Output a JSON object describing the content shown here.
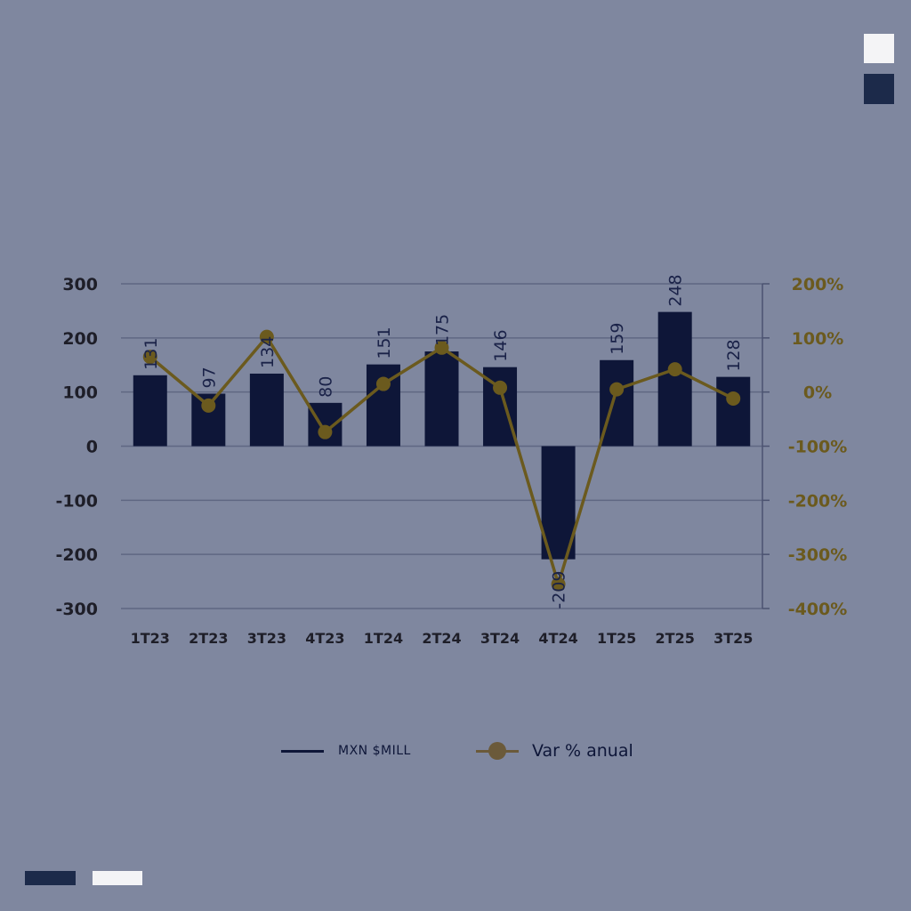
{
  "chart_data": {
    "type": "bar",
    "categories": [
      "1T23",
      "2T23",
      "3T23",
      "4T23",
      "1T24",
      "2T24",
      "3T24",
      "4T24",
      "1T25",
      "2T25",
      "3T25"
    ],
    "series": [
      {
        "name": "MXN $MILL",
        "type": "bar",
        "axis": "left",
        "values": [
          131,
          97,
          134,
          80,
          151,
          175,
          146,
          -209,
          159,
          248,
          128
        ],
        "labels": [
          "131",
          "97",
          "134",
          "80",
          "151",
          "175",
          "146",
          "-209",
          "159",
          "248",
          "128"
        ]
      },
      {
        "name": "Var % anual",
        "type": "line",
        "axis": "right",
        "values": [
          65,
          -25,
          102,
          -74,
          15,
          82,
          8,
          -355,
          5,
          42,
          -12
        ]
      }
    ],
    "ylim": [
      -300,
      300
    ],
    "yticks": [
      "300",
      "200",
      "100",
      "0",
      "-100",
      "-200",
      "-300"
    ],
    "y2lim": [
      -400,
      200
    ],
    "y2ticks": [
      "200%",
      "100%",
      "0%",
      "-100%",
      "-200%",
      "-300%",
      "-400%"
    ],
    "grid": true,
    "legend_position": "bottom",
    "colors": {
      "bar": "#0e1638",
      "line": "#6b5a1e",
      "axis2": "#6b5a1e",
      "text": "#1e1e28"
    }
  },
  "legend": {
    "series1": "MXN $MILL",
    "series2": "Var % anual"
  }
}
